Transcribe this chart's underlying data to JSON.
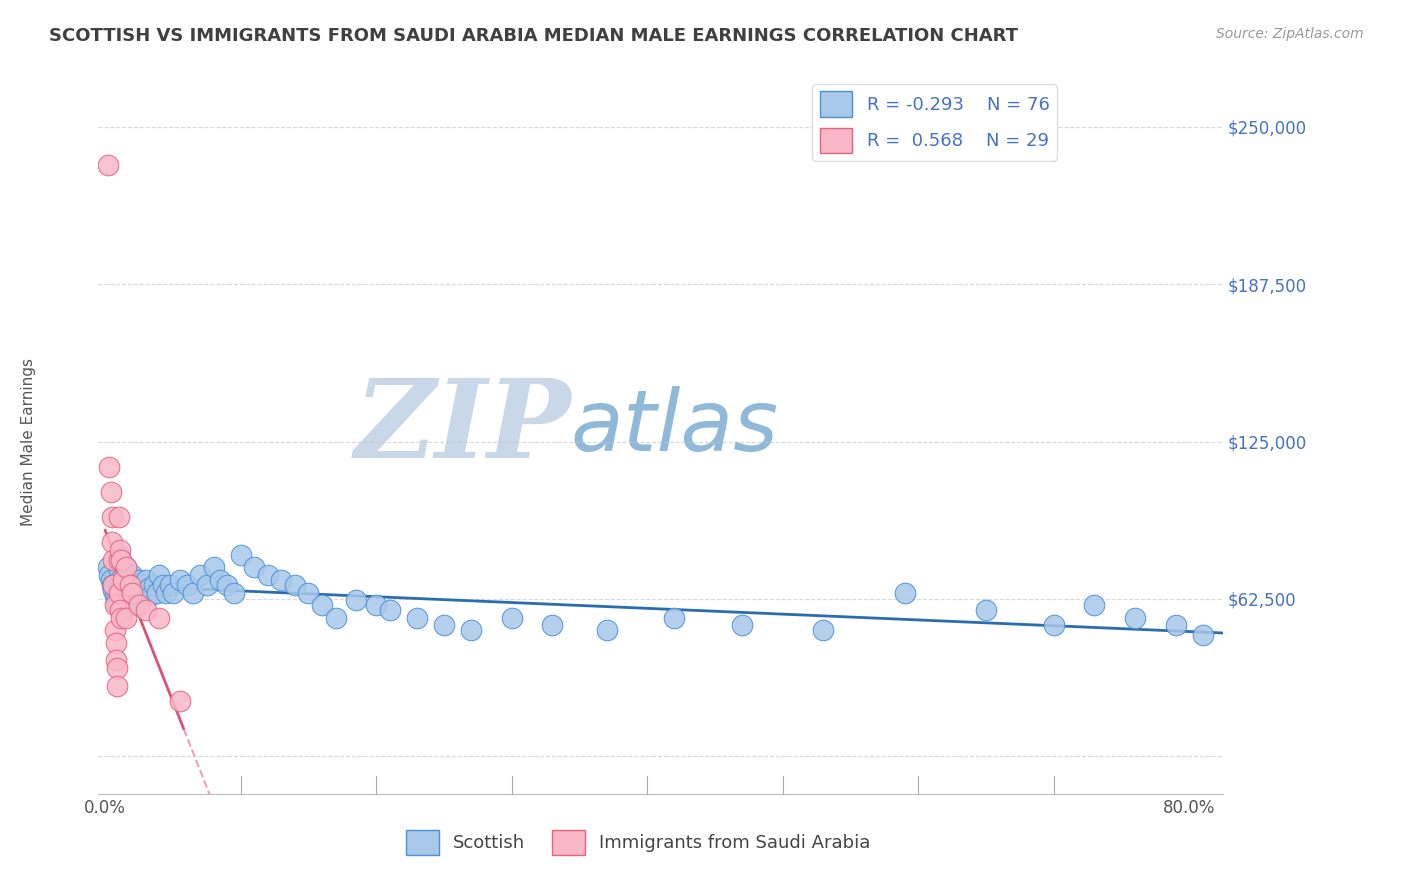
{
  "title": "SCOTTISH VS IMMIGRANTS FROM SAUDI ARABIA MEDIAN MALE EARNINGS CORRELATION CHART",
  "source": "Source: ZipAtlas.com",
  "ylabel": "Median Male Earnings",
  "watermark_zip": "ZIP",
  "watermark_atlas": "atlas",
  "x_ticks": [
    0.0,
    0.1,
    0.2,
    0.3,
    0.4,
    0.5,
    0.6,
    0.7,
    0.8
  ],
  "y_ticks": [
    0,
    62500,
    125000,
    187500,
    250000
  ],
  "y_tick_labels": [
    "",
    "$62,500",
    "$125,000",
    "$187,500",
    "$250,000"
  ],
  "xlim": [
    -0.005,
    0.825
  ],
  "ylim": [
    -15000,
    265000
  ],
  "legend1_R": "-0.293",
  "legend1_N": "76",
  "legend2_R": "0.568",
  "legend2_N": "29",
  "scottish_color": "#a8c8ea",
  "scottish_edge": "#4a90d9",
  "immigrant_color": "#f9b8c8",
  "immigrant_edge": "#e8607a",
  "trendline_scottish_color": "#2b6cb0",
  "trendline_immigrant_color": "#e05070",
  "trendline_immigrant_dash_color": "#f0a0b0",
  "grid_color": "#c8c8c8",
  "title_color": "#404040",
  "ytick_color": "#4472c4",
  "watermark_zip_color": "#c8d8e8",
  "watermark_atlas_color": "#90b8d8",
  "scottish_x": [
    0.002,
    0.003,
    0.004,
    0.005,
    0.006,
    0.007,
    0.008,
    0.009,
    0.01,
    0.01,
    0.01,
    0.01,
    0.01,
    0.011,
    0.012,
    0.013,
    0.014,
    0.015,
    0.015,
    0.016,
    0.017,
    0.018,
    0.019,
    0.02,
    0.021,
    0.022,
    0.023,
    0.025,
    0.027,
    0.028,
    0.03,
    0.032,
    0.034,
    0.036,
    0.038,
    0.04,
    0.043,
    0.045,
    0.048,
    0.05,
    0.055,
    0.06,
    0.065,
    0.07,
    0.075,
    0.08,
    0.085,
    0.09,
    0.095,
    0.1,
    0.11,
    0.12,
    0.13,
    0.14,
    0.15,
    0.16,
    0.17,
    0.185,
    0.2,
    0.21,
    0.23,
    0.25,
    0.27,
    0.3,
    0.33,
    0.37,
    0.42,
    0.47,
    0.53,
    0.59,
    0.65,
    0.7,
    0.73,
    0.76,
    0.79,
    0.81
  ],
  "scottish_y": [
    75000,
    72000,
    70000,
    68000,
    66000,
    64000,
    62000,
    60000,
    80000,
    74000,
    68000,
    65000,
    62000,
    70000,
    68000,
    66000,
    64000,
    75000,
    68000,
    65000,
    62000,
    68000,
    65000,
    72000,
    68000,
    63000,
    60000,
    70000,
    68000,
    65000,
    70000,
    67000,
    64000,
    68000,
    65000,
    72000,
    68000,
    65000,
    68000,
    65000,
    70000,
    68000,
    65000,
    72000,
    68000,
    75000,
    70000,
    68000,
    65000,
    80000,
    75000,
    72000,
    70000,
    68000,
    65000,
    60000,
    55000,
    62000,
    60000,
    58000,
    55000,
    52000,
    50000,
    55000,
    52000,
    50000,
    55000,
    52000,
    50000,
    65000,
    58000,
    52000,
    60000,
    55000,
    52000,
    48000
  ],
  "immigrant_x": [
    0.002,
    0.003,
    0.004,
    0.005,
    0.005,
    0.006,
    0.006,
    0.007,
    0.007,
    0.008,
    0.008,
    0.009,
    0.009,
    0.01,
    0.01,
    0.01,
    0.011,
    0.011,
    0.012,
    0.012,
    0.013,
    0.015,
    0.015,
    0.018,
    0.02,
    0.025,
    0.03,
    0.04,
    0.055
  ],
  "immigrant_y": [
    235000,
    115000,
    105000,
    95000,
    85000,
    78000,
    68000,
    60000,
    50000,
    45000,
    38000,
    35000,
    28000,
    95000,
    78000,
    65000,
    82000,
    58000,
    78000,
    55000,
    70000,
    75000,
    55000,
    68000,
    65000,
    60000,
    58000,
    55000,
    22000
  ]
}
